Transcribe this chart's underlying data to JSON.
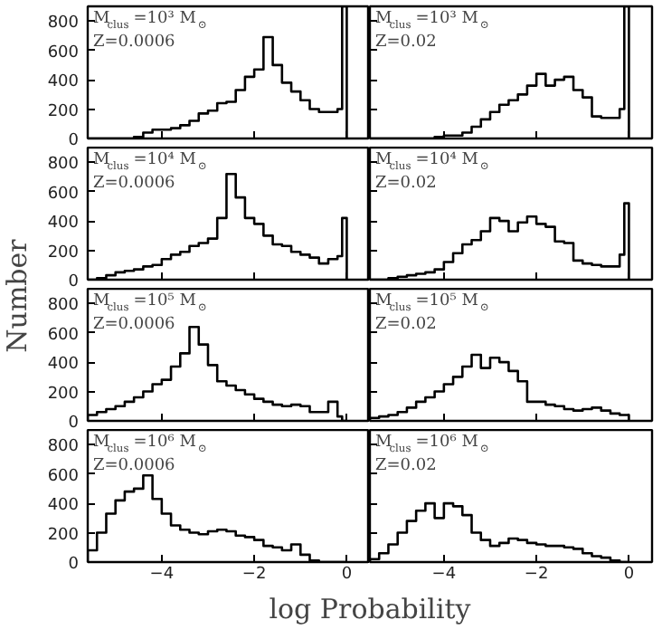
{
  "chart_data": [
    {
      "type": "histogram",
      "ylabel": "Number",
      "annotations": [
        "M$_{clus}$=10³ M$_{⊙}$",
        "Z=0.0006"
      ],
      "bins": [
        -5.6,
        -5.4,
        -5.2,
        -5.0,
        -4.8,
        -4.6,
        -4.4,
        -4.2,
        -4.0,
        -3.8,
        -3.6,
        -3.4,
        -3.2,
        -3.0,
        -2.8,
        -2.6,
        -2.4,
        -2.2,
        -2.0,
        -1.8,
        -1.6,
        -1.4,
        -1.2,
        -1.0,
        -0.8,
        -0.6,
        -0.4,
        -0.2,
        -0.1,
        0.0
      ],
      "values": [
        0,
        0,
        0,
        0,
        0,
        10,
        40,
        60,
        60,
        70,
        90,
        120,
        170,
        190,
        240,
        250,
        330,
        420,
        470,
        690,
        500,
        380,
        320,
        260,
        200,
        180,
        180,
        200,
        900
      ],
      "color": "#000000",
      "xlim": [
        -5.6,
        0.5
      ],
      "ylim": [
        0,
        900
      ],
      "xticks": [
        -4,
        -2,
        0
      ],
      "yticks": [
        0,
        200,
        400,
        600,
        800
      ],
      "tick_labels": "y"
    },
    {
      "type": "histogram",
      "annotations": [
        "M$_{clus}$=10³ M$_{⊙}$",
        "Z=0.02"
      ],
      "bins": [
        -5.6,
        -5.4,
        -5.2,
        -5.0,
        -4.8,
        -4.6,
        -4.4,
        -4.2,
        -4.0,
        -3.8,
        -3.6,
        -3.4,
        -3.2,
        -3.0,
        -2.8,
        -2.6,
        -2.4,
        -2.2,
        -2.0,
        -1.8,
        -1.6,
        -1.4,
        -1.2,
        -1.0,
        -0.8,
        -0.6,
        -0.4,
        -0.2,
        -0.1,
        0.0
      ],
      "values": [
        0,
        0,
        0,
        0,
        0,
        0,
        0,
        10,
        20,
        20,
        40,
        80,
        130,
        180,
        230,
        260,
        300,
        360,
        440,
        360,
        400,
        420,
        330,
        280,
        150,
        140,
        140,
        200,
        900
      ],
      "color": "#000000",
      "xlim": [
        -5.6,
        0.5
      ],
      "ylim": [
        0,
        900
      ],
      "xticks": [
        -4,
        -2,
        0
      ],
      "yticks": [
        0,
        200,
        400,
        600,
        800
      ],
      "tick_labels": false
    },
    {
      "type": "histogram",
      "annotations": [
        "M$_{clus}$=10⁴ M$_{⊙}$",
        "Z=0.0006"
      ],
      "bins": [
        -5.6,
        -5.4,
        -5.2,
        -5.0,
        -4.8,
        -4.6,
        -4.4,
        -4.2,
        -4.0,
        -3.8,
        -3.6,
        -3.4,
        -3.2,
        -3.0,
        -2.8,
        -2.6,
        -2.4,
        -2.2,
        -2.0,
        -1.8,
        -1.6,
        -1.4,
        -1.2,
        -1.0,
        -0.8,
        -0.6,
        -0.4,
        -0.2,
        -0.1,
        0.0
      ],
      "values": [
        0,
        10,
        30,
        50,
        60,
        70,
        90,
        100,
        140,
        170,
        190,
        230,
        250,
        280,
        420,
        720,
        560,
        420,
        380,
        300,
        240,
        230,
        190,
        170,
        150,
        110,
        140,
        160,
        420
      ],
      "color": "#000000",
      "xlim": [
        -5.6,
        0.5
      ],
      "ylim": [
        0,
        900
      ],
      "xticks": [
        -4,
        -2,
        0
      ],
      "yticks": [
        0,
        200,
        400,
        600,
        800
      ],
      "tick_labels": "y"
    },
    {
      "type": "histogram",
      "annotations": [
        "M$_{clus}$=10⁴ M$_{⊙}$",
        "Z=0.02"
      ],
      "bins": [
        -5.6,
        -5.4,
        -5.2,
        -5.0,
        -4.8,
        -4.6,
        -4.4,
        -4.2,
        -4.0,
        -3.8,
        -3.6,
        -3.4,
        -3.2,
        -3.0,
        -2.8,
        -2.6,
        -2.4,
        -2.2,
        -2.0,
        -1.8,
        -1.6,
        -1.4,
        -1.2,
        -1.0,
        -0.8,
        -0.6,
        -0.4,
        -0.2,
        -0.1,
        0.0
      ],
      "values": [
        0,
        0,
        10,
        20,
        30,
        40,
        50,
        70,
        120,
        180,
        240,
        270,
        330,
        420,
        400,
        330,
        390,
        430,
        380,
        360,
        260,
        250,
        130,
        110,
        100,
        90,
        90,
        170,
        520
      ],
      "color": "#000000",
      "xlim": [
        -5.6,
        0.5
      ],
      "ylim": [
        0,
        900
      ],
      "xticks": [
        -4,
        -2,
        0
      ],
      "yticks": [
        0,
        200,
        400,
        600,
        800
      ],
      "tick_labels": false
    },
    {
      "type": "histogram",
      "annotations": [
        "M$_{clus}$=10⁵ M$_{⊙}$",
        "Z=0.0006"
      ],
      "bins": [
        -5.6,
        -5.4,
        -5.2,
        -5.0,
        -4.8,
        -4.6,
        -4.4,
        -4.2,
        -4.0,
        -3.8,
        -3.6,
        -3.4,
        -3.2,
        -3.0,
        -2.8,
        -2.6,
        -2.4,
        -2.2,
        -2.0,
        -1.8,
        -1.6,
        -1.4,
        -1.2,
        -1.0,
        -0.8,
        -0.6,
        -0.4,
        -0.2,
        -0.1,
        0.0
      ],
      "values": [
        40,
        60,
        80,
        100,
        130,
        160,
        200,
        250,
        280,
        370,
        460,
        640,
        520,
        380,
        270,
        240,
        210,
        180,
        150,
        130,
        110,
        100,
        110,
        100,
        60,
        60,
        130,
        30,
        0
      ],
      "color": "#000000",
      "xlim": [
        -5.6,
        0.5
      ],
      "ylim": [
        0,
        900
      ],
      "xticks": [
        -4,
        -2,
        0
      ],
      "yticks": [
        0,
        200,
        400,
        600,
        800
      ],
      "tick_labels": "y"
    },
    {
      "type": "histogram",
      "annotations": [
        "M$_{clus}$=10⁵ M$_{⊙}$",
        "Z=0.02"
      ],
      "bins": [
        -5.6,
        -5.4,
        -5.2,
        -5.0,
        -4.8,
        -4.6,
        -4.4,
        -4.2,
        -4.0,
        -3.8,
        -3.6,
        -3.4,
        -3.2,
        -3.0,
        -2.8,
        -2.6,
        -2.4,
        -2.2,
        -2.0,
        -1.8,
        -1.6,
        -1.4,
        -1.2,
        -1.0,
        -0.8,
        -0.6,
        -0.4,
        -0.2,
        -0.1,
        0.0
      ],
      "values": [
        20,
        30,
        40,
        60,
        90,
        130,
        160,
        200,
        250,
        300,
        370,
        450,
        360,
        430,
        400,
        340,
        270,
        130,
        130,
        110,
        100,
        80,
        70,
        80,
        90,
        70,
        50,
        40,
        40
      ],
      "color": "#000000",
      "xlim": [
        -5.6,
        0.5
      ],
      "ylim": [
        0,
        900
      ],
      "xticks": [
        -4,
        -2,
        0
      ],
      "yticks": [
        0,
        200,
        400,
        600,
        800
      ],
      "tick_labels": false
    },
    {
      "type": "histogram",
      "xlabel": "log Probability",
      "annotations": [
        "M$_{clus}$=10⁶ M$_{⊙}$",
        "Z=0.0006"
      ],
      "bins": [
        -5.6,
        -5.4,
        -5.2,
        -5.0,
        -4.8,
        -4.6,
        -4.4,
        -4.2,
        -4.0,
        -3.8,
        -3.6,
        -3.4,
        -3.2,
        -3.0,
        -2.8,
        -2.6,
        -2.4,
        -2.2,
        -2.0,
        -1.8,
        -1.6,
        -1.4,
        -1.2,
        -1.0,
        -0.8,
        -0.6,
        -0.4,
        -0.2,
        -0.1,
        0.0
      ],
      "values": [
        80,
        200,
        330,
        420,
        480,
        500,
        590,
        430,
        330,
        250,
        220,
        200,
        190,
        210,
        220,
        210,
        180,
        170,
        150,
        110,
        100,
        80,
        120,
        50,
        10,
        0,
        0,
        0,
        0
      ],
      "color": "#000000",
      "xlim": [
        -5.6,
        0.5
      ],
      "ylim": [
        0,
        900
      ],
      "xticks": [
        -4,
        -2,
        0
      ],
      "yticks": [
        0,
        200,
        400,
        600,
        800
      ]
    },
    {
      "type": "histogram",
      "annotations": [
        "M$_{clus}$=10⁶ M$_{⊙}$",
        "Z=0.02"
      ],
      "bins": [
        -5.6,
        -5.4,
        -5.2,
        -5.0,
        -4.8,
        -4.6,
        -4.4,
        -4.2,
        -4.0,
        -3.8,
        -3.6,
        -3.4,
        -3.2,
        -3.0,
        -2.8,
        -2.6,
        -2.4,
        -2.2,
        -2.0,
        -1.8,
        -1.6,
        -1.4,
        -1.2,
        -1.0,
        -0.8,
        -0.6,
        -0.4,
        -0.2,
        -0.1,
        0.0
      ],
      "values": [
        20,
        60,
        120,
        200,
        280,
        350,
        400,
        300,
        400,
        380,
        320,
        200,
        150,
        110,
        130,
        160,
        150,
        130,
        120,
        110,
        110,
        100,
        90,
        60,
        40,
        30,
        10,
        0,
        0
      ],
      "color": "#000000",
      "xlim": [
        -5.6,
        0.5
      ],
      "ylim": [
        0,
        900
      ],
      "xticks": [
        -4,
        -2,
        0
      ],
      "yticks": [
        0,
        200,
        400,
        600,
        800
      ],
      "tick_labels": "x"
    }
  ]
}
